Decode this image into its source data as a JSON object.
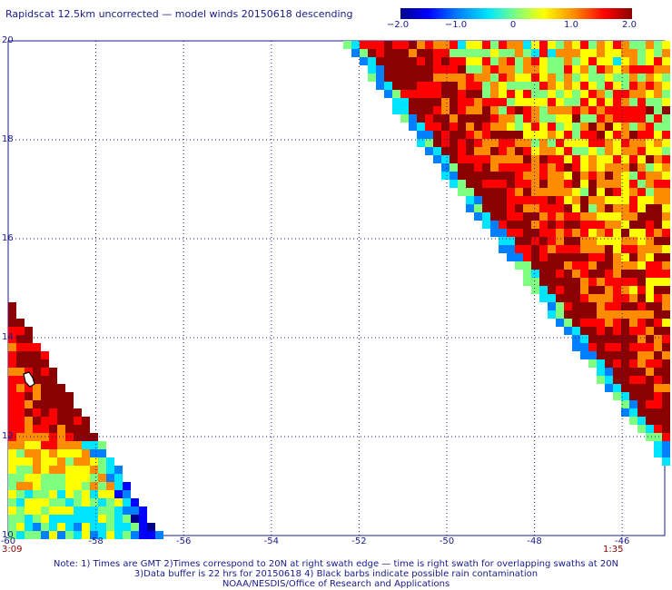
{
  "title": "Rapidscat 12.5km uncorrected — model winds 20150618 descending",
  "colorbar": {
    "labels": [
      "−2.0",
      "−1.0",
      "0",
      "1.0",
      "2.0"
    ],
    "values": [
      -2.0,
      -1.0,
      0,
      1.0,
      2.0
    ],
    "colors": [
      "#00008b",
      "#0000ff",
      "#0080ff",
      "#00e5ff",
      "#7fff7f",
      "#ffff00",
      "#ff8c00",
      "#ff0000",
      "#8b0000"
    ]
  },
  "map": {
    "lat_labels": [
      "20",
      "18",
      "16",
      "14",
      "12",
      "10"
    ],
    "lon_labels": [
      "-60",
      "-58",
      "-56",
      "-54",
      "-52",
      "-50",
      "-48",
      "-46"
    ],
    "lat_range": [
      10,
      20
    ],
    "lon_range": [
      -60,
      -45
    ],
    "time_left": "3:09",
    "time_right": "1:35",
    "gridlines": "dotted",
    "island": "Barbados"
  },
  "footer": {
    "line1": "Note: 1) Times are GMT 2)Times correspond to 20N at right swath edge — time is right swath for overlapping swaths at 20N",
    "line2": "3)Data buffer is 22 hrs for 20150618 4) Black barbs indicate possible rain contamination",
    "line3": "NOAA/NESDIS/Office of Research and Applications"
  }
}
